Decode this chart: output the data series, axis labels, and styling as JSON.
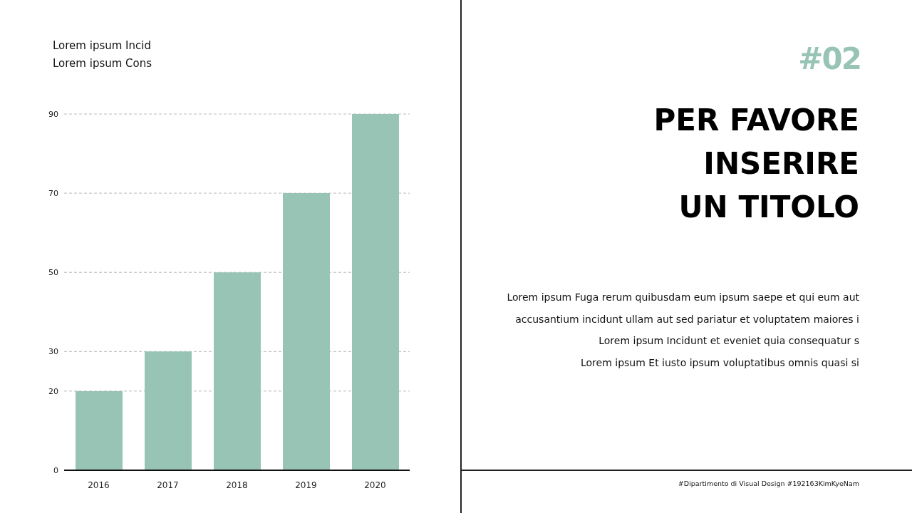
{
  "chart_data": {
    "type": "bar",
    "title": "PER FAVORE\nINSERIRE\nUN TITOLO",
    "subtitle": "#02",
    "categories": [
      "2016",
      "2017",
      "2018",
      "2019",
      "2020"
    ],
    "values": [
      20,
      30,
      50,
      70,
      90
    ],
    "color": "#98c4b5",
    "ylim": [
      0,
      90
    ],
    "yticks": [
      0,
      20,
      30,
      50,
      70,
      90
    ],
    "grid": "y",
    "annotations": [
      "Lorem ipsum Incid\nLorem ipsum Cons",
      "Lorem ipsum Fuga rerum quibusdam eum ipsum saepe et qui eum aut\naccusantium incidunt ullam aut sed pariatur et voluptatem maiores i\nLorem ipsum Incidunt et eveniet quia consequatur s\nLorem ipsum Et iusto ipsum voluptatibus omnis quasi si",
      "#Dipartimento di Visual Design #192163KimKyeNam"
    ]
  }
}
